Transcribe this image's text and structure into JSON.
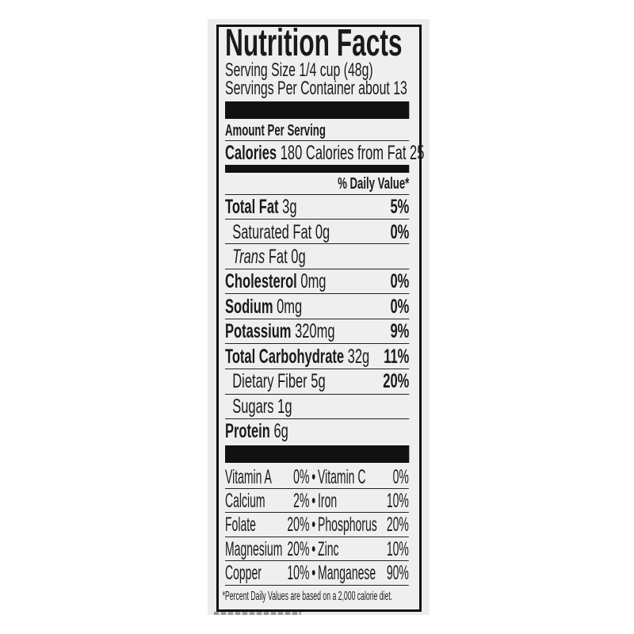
{
  "title": "Nutrition Facts",
  "serving_size": "Serving Size 1/4 cup (48g)",
  "servings_per_container": "Servings Per Container about 13",
  "amount_per_serving": "Amount Per Serving",
  "calories": {
    "label": "Calories",
    "value": "180",
    "from_fat": "Calories from Fat 25"
  },
  "daily_value_header": "% Daily Value*",
  "nutrients": [
    {
      "label": "Total Fat",
      "amount": "3g",
      "dv": "5%"
    },
    {
      "label": "Saturated Fat",
      "amount": "0g",
      "dv": "0%"
    },
    {
      "label": "Trans",
      "label_suffix": "Fat",
      "amount": "0g"
    },
    {
      "label": "Cholesterol",
      "amount": "0mg",
      "dv": "0%"
    },
    {
      "label": "Sodium",
      "amount": "0mg",
      "dv": "0%"
    },
    {
      "label": "Potassium",
      "amount": "320mg",
      "dv": "9%"
    },
    {
      "label": "Total Carbohydrate",
      "amount": "32g",
      "dv": "11%"
    },
    {
      "label": "Dietary Fiber",
      "amount": "5g",
      "dv": "20%"
    },
    {
      "label": "Sugars",
      "amount": "1g"
    },
    {
      "label": "Protein",
      "amount": "6g"
    }
  ],
  "vitamins": [
    {
      "left": "Vitamin A",
      "left_dv": "0%",
      "right": "Vitamin C",
      "right_dv": "0%"
    },
    {
      "left": "Calcium",
      "left_dv": "2%",
      "right": "Iron",
      "right_dv": "10%"
    },
    {
      "left": "Folate",
      "left_dv": "20%",
      "right": "Phosphorus",
      "right_dv": "20%"
    },
    {
      "left": "Magnesium",
      "left_dv": "20%",
      "right": "Zinc",
      "right_dv": "10%"
    },
    {
      "left": "Copper",
      "left_dv": "10%",
      "right": "Manganese",
      "right_dv": "90%"
    }
  ],
  "bullet": "•",
  "footnote": "*Percent Daily Values are based on a 2,000 calorie diet."
}
